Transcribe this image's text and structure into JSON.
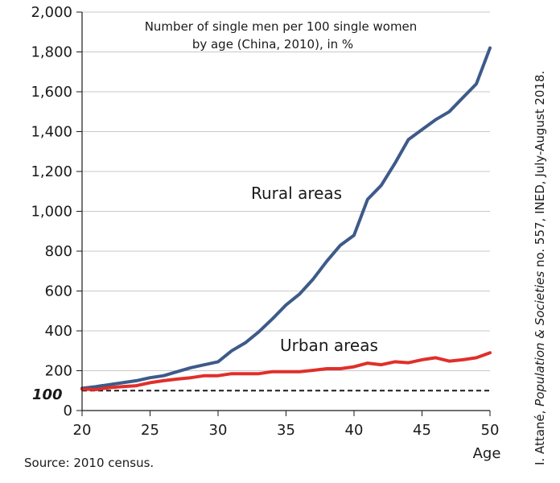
{
  "chart_data": {
    "type": "line",
    "title_lines": [
      "Number of single men per 100 single women",
      "by age (China, 2010), in %"
    ],
    "xlabel": "Age",
    "ylabel": "",
    "xlim": [
      20,
      50
    ],
    "ylim": [
      0,
      2000
    ],
    "x_ticks": [
      20,
      25,
      30,
      35,
      40,
      45,
      50
    ],
    "y_ticks": [
      0,
      200,
      400,
      600,
      800,
      1000,
      1200,
      1400,
      1600,
      1800,
      2000
    ],
    "y_tick_labels": [
      "0",
      "200",
      "400",
      "600",
      "800",
      "1,000",
      "1,200",
      "1,400",
      "1,600",
      "1,800",
      "2,000"
    ],
    "grid": "horizontal",
    "reference_line": {
      "y": 100,
      "label": "100",
      "style": "dashed"
    },
    "x": [
      20,
      21,
      22,
      23,
      24,
      25,
      26,
      27,
      28,
      29,
      30,
      31,
      32,
      33,
      34,
      35,
      36,
      37,
      38,
      39,
      40,
      41,
      42,
      43,
      44,
      45,
      46,
      47,
      48,
      49,
      50
    ],
    "series": [
      {
        "name": "Rural areas",
        "color": "#3d5a8a",
        "values": [
          112,
          120,
          130,
          140,
          150,
          165,
          175,
          195,
          215,
          230,
          245,
          300,
          340,
          395,
          460,
          530,
          585,
          660,
          750,
          830,
          880,
          1060,
          1130,
          1240,
          1360,
          1410,
          1460,
          1500,
          1570,
          1640,
          1820
        ]
      },
      {
        "name": "Urban areas",
        "color": "#e02f2a",
        "values": [
          108,
          105,
          115,
          120,
          125,
          140,
          150,
          158,
          165,
          175,
          175,
          185,
          185,
          185,
          195,
          195,
          195,
          202,
          210,
          210,
          220,
          238,
          230,
          245,
          240,
          255,
          265,
          248,
          255,
          265,
          290
        ]
      }
    ],
    "source": "Source: 2010 census.",
    "credit": {
      "before": "I. Attané, ",
      "italic": "Population & Societies",
      "after": " no. 557, INED, July-August 2018."
    }
  }
}
